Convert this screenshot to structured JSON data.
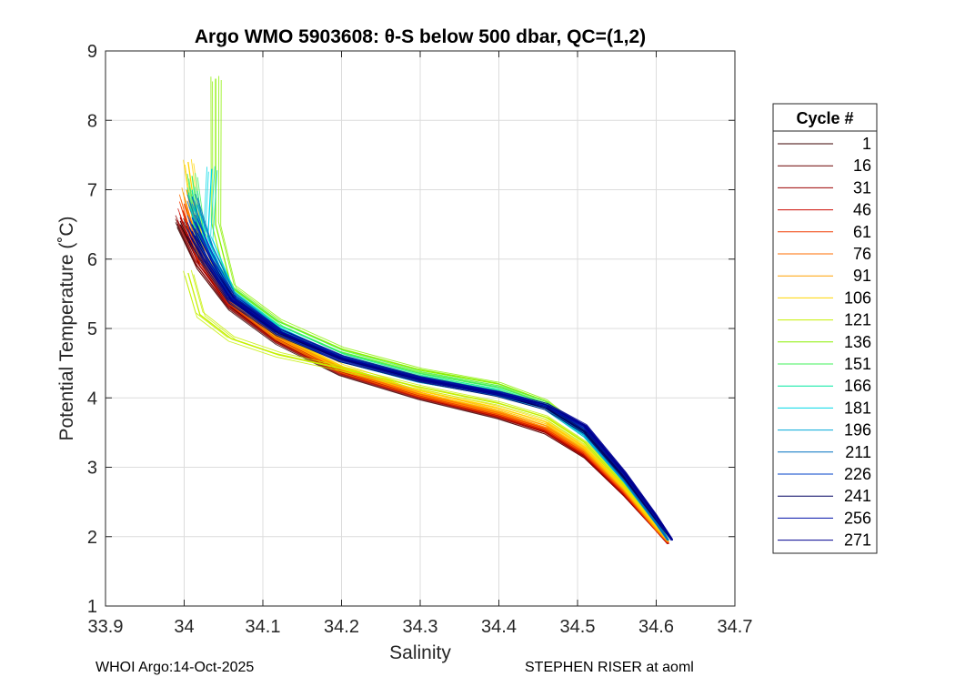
{
  "chart_data": {
    "type": "line",
    "title": "Argo WMO 5903608: θ-S below 500 dbar,  QC=(1,2)",
    "xlabel": "Salinity",
    "ylabel": "Potential Temperature (˚C)",
    "xlim": [
      33.9,
      34.7
    ],
    "ylim": [
      1,
      9
    ],
    "xticks": [
      33.9,
      34.0,
      34.1,
      34.2,
      34.3,
      34.4,
      34.5,
      34.6,
      34.7
    ],
    "xtick_labels": [
      "33.9",
      "34",
      "34.1",
      "34.2",
      "34.3",
      "34.4",
      "34.5",
      "34.6",
      "34.7"
    ],
    "yticks": [
      1,
      2,
      3,
      4,
      5,
      6,
      7,
      8,
      9
    ],
    "ytick_labels": [
      "1",
      "2",
      "3",
      "4",
      "5",
      "6",
      "7",
      "8",
      "9"
    ],
    "grid": true,
    "legend_title": "Cycle #",
    "legend_position": "right-outside",
    "series": [
      {
        "name": "1",
        "color": "#3b0000",
        "x": [
          33.995,
          34.02,
          34.06,
          34.12,
          34.2,
          34.3,
          34.4,
          34.46,
          34.51,
          34.56,
          34.6,
          34.615
        ],
        "y": [
          6.5,
          5.9,
          5.3,
          4.8,
          4.35,
          4.0,
          3.72,
          3.5,
          3.15,
          2.6,
          2.1,
          1.9
        ]
      },
      {
        "name": "16",
        "color": "#6a0000",
        "x": [
          33.995,
          34.02,
          34.06,
          34.12,
          34.2,
          34.3,
          34.4,
          34.46,
          34.51,
          34.56,
          34.6,
          34.615
        ],
        "y": [
          6.55,
          5.9,
          5.32,
          4.82,
          4.36,
          4.01,
          3.73,
          3.5,
          3.15,
          2.6,
          2.1,
          1.9
        ]
      },
      {
        "name": "31",
        "color": "#9b0000",
        "x": [
          33.995,
          34.02,
          34.06,
          34.12,
          34.2,
          34.3,
          34.4,
          34.46,
          34.51,
          34.56,
          34.6,
          34.615
        ],
        "y": [
          6.6,
          5.95,
          5.33,
          4.83,
          4.37,
          4.02,
          3.74,
          3.52,
          3.16,
          2.6,
          2.1,
          1.9
        ]
      },
      {
        "name": "46",
        "color": "#cc0a00",
        "x": [
          33.998,
          34.02,
          34.06,
          34.12,
          34.2,
          34.3,
          34.4,
          34.46,
          34.51,
          34.56,
          34.6,
          34.615
        ],
        "y": [
          6.7,
          6.0,
          5.35,
          4.84,
          4.38,
          4.03,
          3.75,
          3.53,
          3.18,
          2.62,
          2.1,
          1.9
        ]
      },
      {
        "name": "61",
        "color": "#f03a00",
        "x": [
          34.0,
          34.02,
          34.06,
          34.12,
          34.2,
          34.3,
          34.4,
          34.46,
          34.51,
          34.56,
          34.6,
          34.615
        ],
        "y": [
          6.8,
          6.05,
          5.38,
          4.86,
          4.39,
          4.04,
          3.76,
          3.55,
          3.2,
          2.64,
          2.1,
          1.92
        ]
      },
      {
        "name": "76",
        "color": "#ff6d00",
        "x": [
          34.0,
          34.02,
          34.06,
          34.12,
          34.2,
          34.3,
          34.4,
          34.46,
          34.51,
          34.56,
          34.6,
          34.615
        ],
        "y": [
          6.9,
          6.1,
          5.4,
          4.87,
          4.4,
          4.05,
          3.78,
          3.57,
          3.22,
          2.66,
          2.12,
          1.92
        ]
      },
      {
        "name": "91",
        "color": "#ffa000",
        "x": [
          34.003,
          34.02,
          34.06,
          34.12,
          34.2,
          34.3,
          34.4,
          34.46,
          34.51,
          34.56,
          34.6,
          34.615
        ],
        "y": [
          7.0,
          6.15,
          5.42,
          4.88,
          4.42,
          4.07,
          3.8,
          3.6,
          3.25,
          2.68,
          2.12,
          1.93
        ]
      },
      {
        "name": "106",
        "color": "#ffd400",
        "x": [
          34.005,
          34.02,
          34.06,
          34.12,
          34.2,
          34.3,
          34.4,
          34.46,
          34.51,
          34.56,
          34.6,
          34.615
        ],
        "y": [
          7.4,
          6.2,
          5.45,
          4.9,
          4.45,
          4.1,
          3.85,
          3.65,
          3.28,
          2.7,
          2.15,
          1.95
        ]
      },
      {
        "name": "121",
        "color": "#c6f000",
        "x": [
          34.005,
          34.02,
          34.06,
          34.12,
          34.2,
          34.3,
          34.4,
          34.46,
          34.51,
          34.56,
          34.6,
          34.615
        ],
        "y": [
          5.8,
          5.2,
          4.85,
          4.62,
          4.42,
          4.15,
          3.92,
          3.72,
          3.35,
          2.75,
          2.2,
          1.95
        ]
      },
      {
        "name": "136",
        "color": "#8af000",
        "x": [
          34.04,
          34.04,
          34.06,
          34.12,
          34.2,
          34.3,
          34.4,
          34.46,
          34.51,
          34.56,
          34.6,
          34.615
        ],
        "y": [
          8.6,
          6.5,
          5.6,
          5.1,
          4.7,
          4.4,
          4.2,
          3.95,
          3.5,
          2.85,
          2.25,
          1.95
        ]
      },
      {
        "name": "151",
        "color": "#40f05a",
        "x": [
          34.01,
          34.02,
          34.06,
          34.12,
          34.2,
          34.3,
          34.4,
          34.46,
          34.51,
          34.56,
          34.6,
          34.615
        ],
        "y": [
          7.2,
          6.4,
          5.55,
          5.05,
          4.65,
          4.35,
          4.15,
          3.92,
          3.48,
          2.82,
          2.2,
          1.95
        ]
      },
      {
        "name": "166",
        "color": "#00e8a0",
        "x": [
          34.01,
          34.02,
          34.06,
          34.12,
          34.2,
          34.3,
          34.4,
          34.46,
          34.51,
          34.56,
          34.6,
          34.615
        ],
        "y": [
          7.0,
          6.3,
          5.5,
          5.0,
          4.6,
          4.3,
          4.1,
          3.88,
          3.45,
          2.8,
          2.2,
          1.95
        ]
      },
      {
        "name": "181",
        "color": "#00d8e6",
        "x": [
          34.035,
          34.03,
          34.06,
          34.12,
          34.2,
          34.3,
          34.4,
          34.46,
          34.51,
          34.56,
          34.6,
          34.615
        ],
        "y": [
          7.3,
          6.3,
          5.5,
          4.98,
          4.55,
          4.25,
          4.05,
          3.85,
          3.45,
          2.8,
          2.2,
          1.95
        ]
      },
      {
        "name": "196",
        "color": "#00a8d8",
        "x": [
          34.01,
          34.03,
          34.06,
          34.12,
          34.2,
          34.3,
          34.4,
          34.46,
          34.51,
          34.56,
          34.6,
          34.615
        ],
        "y": [
          6.8,
          6.2,
          5.5,
          4.96,
          4.55,
          4.25,
          4.05,
          3.85,
          3.45,
          2.8,
          2.2,
          1.95
        ]
      },
      {
        "name": "211",
        "color": "#0070c0",
        "x": [
          34.01,
          34.03,
          34.06,
          34.12,
          34.2,
          34.3,
          34.4,
          34.46,
          34.51,
          34.56,
          34.6,
          34.615
        ],
        "y": [
          6.9,
          6.2,
          5.48,
          4.95,
          4.55,
          4.25,
          4.05,
          3.87,
          3.5,
          2.82,
          2.2,
          1.95
        ]
      },
      {
        "name": "226",
        "color": "#0040c8",
        "x": [
          34.01,
          34.03,
          34.06,
          34.12,
          34.2,
          34.3,
          34.4,
          34.46,
          34.51,
          34.56,
          34.6,
          34.62
        ],
        "y": [
          6.6,
          6.1,
          5.45,
          4.95,
          4.56,
          4.27,
          4.06,
          3.88,
          3.55,
          2.85,
          2.25,
          1.95
        ]
      },
      {
        "name": "241",
        "color": "#000060",
        "x": [
          34.01,
          34.03,
          34.06,
          34.12,
          34.2,
          34.3,
          34.4,
          34.46,
          34.51,
          34.56,
          34.6,
          34.62
        ],
        "y": [
          6.3,
          5.9,
          5.4,
          4.93,
          4.55,
          4.26,
          4.04,
          3.85,
          3.5,
          2.85,
          2.25,
          1.95
        ]
      },
      {
        "name": "256",
        "color": "#0010a8",
        "x": [
          34.01,
          34.03,
          34.06,
          34.12,
          34.2,
          34.3,
          34.4,
          34.46,
          34.51,
          34.56,
          34.6,
          34.62
        ],
        "y": [
          6.5,
          6.0,
          5.45,
          4.96,
          4.58,
          4.28,
          4.07,
          3.9,
          3.58,
          2.9,
          2.28,
          1.95
        ]
      },
      {
        "name": "271",
        "color": "#000090",
        "x": [
          34.01,
          34.03,
          34.06,
          34.12,
          34.2,
          34.3,
          34.4,
          34.46,
          34.51,
          34.56,
          34.6,
          34.62
        ],
        "y": [
          6.4,
          5.95,
          5.42,
          4.95,
          4.57,
          4.27,
          4.06,
          3.9,
          3.6,
          2.92,
          2.3,
          1.96
        ]
      }
    ]
  },
  "footer": {
    "left": "WHOI Argo:14-Oct-2025",
    "right": "STEPHEN RISER at aoml"
  }
}
